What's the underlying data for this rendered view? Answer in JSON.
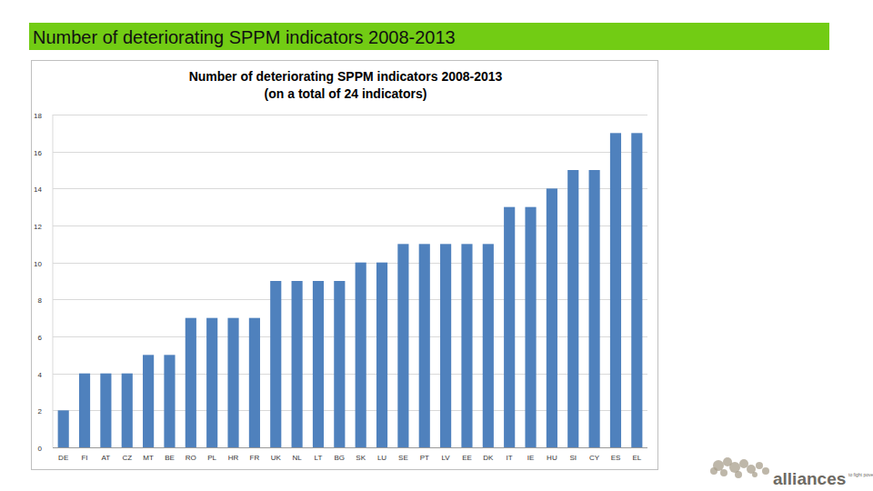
{
  "header": {
    "title": "Number of deteriorating SPPM indicators 2008-2013"
  },
  "chart_data": {
    "type": "bar",
    "title": "Number of deteriorating SPPM indicators 2008-2013",
    "subtitle": "(on a total of 24 indicators)",
    "categories": [
      "DE",
      "FI",
      "AT",
      "CZ",
      "MT",
      "BE",
      "RO",
      "PL",
      "HR",
      "FR",
      "UK",
      "NL",
      "LT",
      "BG",
      "SK",
      "LU",
      "SE",
      "PT",
      "LV",
      "EE",
      "DK",
      "IT",
      "IE",
      "HU",
      "SI",
      "CY",
      "ES",
      "EL"
    ],
    "values": [
      2,
      4,
      4,
      4,
      5,
      5,
      7,
      7,
      7,
      7,
      9,
      9,
      9,
      9,
      10,
      10,
      11,
      11,
      11,
      11,
      11,
      13,
      13,
      14,
      15,
      15,
      17,
      17
    ],
    "color": "#4f81bd",
    "ylim": [
      0,
      18
    ],
    "yticks": [
      0,
      2,
      4,
      6,
      8,
      10,
      12,
      14,
      16,
      18
    ],
    "grid": true
  },
  "logo": {
    "name": "alliances",
    "tagline": "to fight poverty"
  }
}
